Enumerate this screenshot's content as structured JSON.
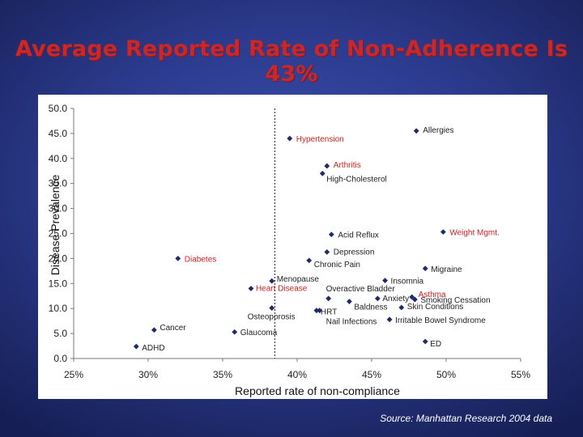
{
  "slide": {
    "title": "Average Reported Rate of Non-Adherence Is 43%",
    "source": "Source: Manhattan Research 2004 data"
  },
  "chart_data": {
    "type": "scatter",
    "xlabel": "Reported rate of non-compliance",
    "ylabel": "Disease Prevalence",
    "xlim": [
      0.25,
      0.55
    ],
    "ylim": [
      0,
      50
    ],
    "x_ticks": [
      "25%",
      "30%",
      "35%",
      "40%",
      "45%",
      "50%",
      "55%"
    ],
    "y_ticks": [
      "0.0",
      "5.0",
      "10.0",
      "15.0",
      "20.0",
      "25.0",
      "30.0",
      "35.0",
      "40.0",
      "45.0",
      "50.0"
    ],
    "grid": false,
    "reference_line_x": 0.385,
    "colors": {
      "marker": "#1f2a6b",
      "highlight_label": "#d02020",
      "normal_label": "#222222"
    },
    "points": [
      {
        "name": "Allergies",
        "x": 0.48,
        "y": 45.5,
        "highlight": false
      },
      {
        "name": "Hypertension",
        "x": 0.395,
        "y": 44.0,
        "highlight": true
      },
      {
        "name": "Arthritis",
        "x": 0.42,
        "y": 38.5,
        "highlight": true
      },
      {
        "name": "High-Cholesterol",
        "x": 0.417,
        "y": 37.0,
        "highlight": false
      },
      {
        "name": "Weight Mgmt.",
        "x": 0.498,
        "y": 25.3,
        "highlight": true
      },
      {
        "name": "Acid Reflux",
        "x": 0.423,
        "y": 24.8,
        "highlight": false
      },
      {
        "name": "Depression",
        "x": 0.42,
        "y": 21.3,
        "highlight": false
      },
      {
        "name": "Chronic Pain",
        "x": 0.408,
        "y": 19.6,
        "highlight": false
      },
      {
        "name": "Diabetes",
        "x": 0.32,
        "y": 20.0,
        "highlight": true
      },
      {
        "name": "Migraine",
        "x": 0.486,
        "y": 18.0,
        "highlight": false
      },
      {
        "name": "Insomnia",
        "x": 0.459,
        "y": 15.6,
        "highlight": false
      },
      {
        "name": "Menopause",
        "x": 0.383,
        "y": 15.5,
        "highlight": false
      },
      {
        "name": "Heart Disease",
        "x": 0.369,
        "y": 14.0,
        "highlight": true
      },
      {
        "name": "Asthma",
        "x": 0.477,
        "y": 12.3,
        "highlight": true
      },
      {
        "name": "Overactive Bladder",
        "x": 0.421,
        "y": 12.0,
        "highlight": false
      },
      {
        "name": "Anxiety",
        "x": 0.454,
        "y": 12.0,
        "highlight": false
      },
      {
        "name": "Smoking Cessation",
        "x": 0.479,
        "y": 11.8,
        "highlight": false
      },
      {
        "name": "Baldness",
        "x": 0.435,
        "y": 11.4,
        "highlight": false
      },
      {
        "name": "Skin Conditions",
        "x": 0.47,
        "y": 10.2,
        "highlight": false
      },
      {
        "name": "HRT",
        "x": 0.413,
        "y": 9.6,
        "highlight": false
      },
      {
        "name": "Osteoporosis",
        "x": 0.383,
        "y": 10.1,
        "highlight": false
      },
      {
        "name": "Nail Infections",
        "x": 0.415,
        "y": 9.6,
        "highlight": false
      },
      {
        "name": "Irritable Bowel Syndrome",
        "x": 0.462,
        "y": 7.8,
        "highlight": false
      },
      {
        "name": "Cancer",
        "x": 0.304,
        "y": 5.7,
        "highlight": false
      },
      {
        "name": "Glaucoma",
        "x": 0.358,
        "y": 5.3,
        "highlight": false
      },
      {
        "name": "ED",
        "x": 0.486,
        "y": 3.4,
        "highlight": false
      },
      {
        "name": "ADHD",
        "x": 0.292,
        "y": 2.4,
        "highlight": false
      }
    ]
  }
}
